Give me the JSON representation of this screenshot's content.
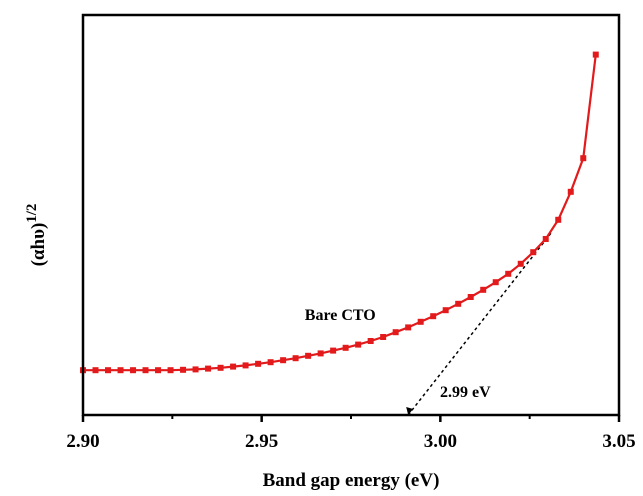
{
  "chart_data": {
    "type": "line",
    "xlabel": "Band gap energy (eV)",
    "ylabel_base": "(αhυ)",
    "ylabel_exp": "1/2",
    "xlim": [
      2.9,
      3.05
    ],
    "ylim": [
      0,
      1
    ],
    "x_ticks": [
      "2.90",
      "2.95",
      "3.00",
      "3.05"
    ],
    "y_ticks_shown": false,
    "grid": false,
    "legend": "none",
    "series": [
      {
        "name": "Bare CTO",
        "color": "#e31a1c",
        "marker": "square",
        "x": [
          2.9,
          2.9035,
          2.907,
          2.9105,
          2.914,
          2.9175,
          2.921,
          2.9245,
          2.928,
          2.9315,
          2.935,
          2.9385,
          2.942,
          2.9455,
          2.949,
          2.9525,
          2.956,
          2.9595,
          2.963,
          2.9665,
          2.97,
          2.9735,
          2.977,
          2.9805,
          2.984,
          2.9875,
          2.991,
          2.9945,
          2.998,
          3.0015,
          3.005,
          3.0085,
          3.012,
          3.0155,
          3.019,
          3.0225,
          3.026,
          3.0295,
          3.033,
          3.0365,
          3.04,
          3.0435
        ],
        "y": [
          0.112,
          0.112,
          0.112,
          0.112,
          0.112,
          0.112,
          0.112,
          0.112,
          0.113,
          0.114,
          0.116,
          0.118,
          0.121,
          0.124,
          0.128,
          0.132,
          0.137,
          0.142,
          0.148,
          0.154,
          0.161,
          0.168,
          0.176,
          0.185,
          0.195,
          0.207,
          0.219,
          0.233,
          0.247,
          0.262,
          0.278,
          0.295,
          0.313,
          0.332,
          0.353,
          0.378,
          0.407,
          0.44,
          0.488,
          0.558,
          0.642,
          0.901
        ]
      }
    ],
    "tangent_line": {
      "x": [
        2.991,
        3.031
      ],
      "y": [
        0.0,
        0.455
      ],
      "style": "dashed",
      "color": "#000000"
    },
    "annotations": [
      {
        "text": "Bare CTO",
        "x": 2.972,
        "y": 0.238
      },
      {
        "text": "2.99 eV",
        "x": 3.007,
        "y": 0.045
      }
    ]
  }
}
